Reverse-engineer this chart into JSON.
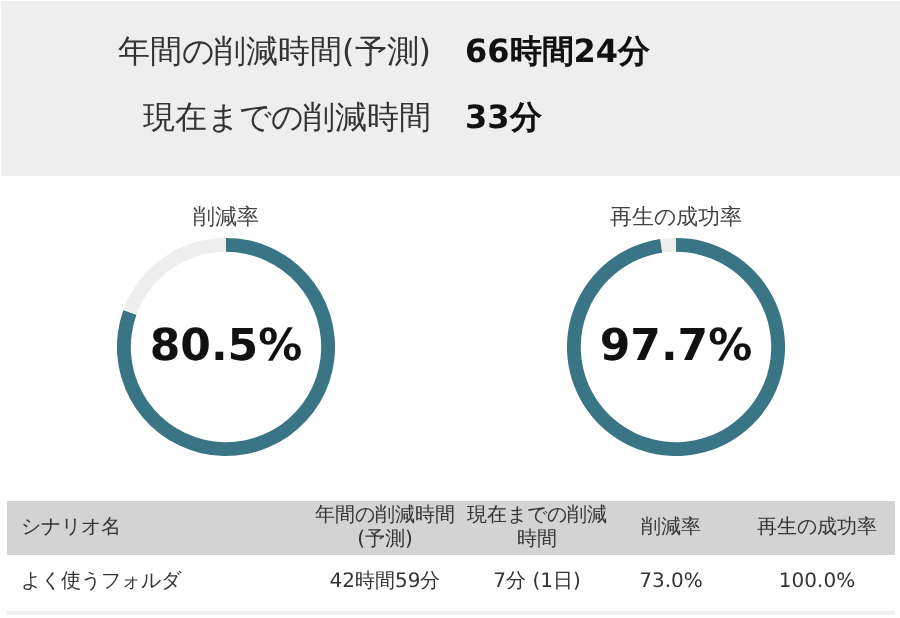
{
  "chart_data": [
    {
      "type": "other",
      "annotations": [
        "年間の削減時間(予測)",
        "66時間24分",
        "現在までの削減時間",
        "33分"
      ]
    },
    {
      "type": "donut",
      "title": "削減率",
      "categories": [
        null,
        null
      ],
      "values": [
        80.5,
        19.5
      ],
      "colors": [
        "#3a7585",
        "#eeeeee"
      ],
      "value_labels": [
        "80.5%",
        null
      ]
    },
    {
      "type": "donut",
      "title": "再生の成功率",
      "categories": [
        null,
        null
      ],
      "values": [
        97.7,
        2.3
      ],
      "colors": [
        "#3a7585",
        "#eeeeee"
      ],
      "value_labels": [
        "97.7%",
        null
      ]
    },
    {
      "type": "other",
      "annotations": [
        "シナリオ名",
        "年間の削減時間(予測)",
        "現在までの削減時間",
        "削減率",
        "再生の成功率",
        "よく使うフォルダ",
        "42時間59分",
        "7分 (1日)",
        "73.0%",
        "100.0%"
      ]
    }
  ]
}
